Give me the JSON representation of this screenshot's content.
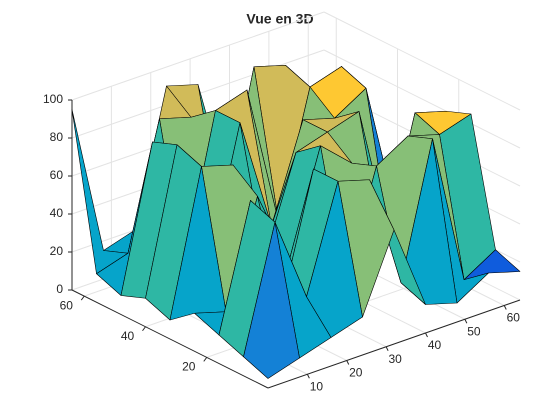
{
  "chart_data": {
    "type": "surface",
    "title": "Vue en 3D",
    "x": [
      0,
      8,
      16,
      24,
      32,
      40,
      48,
      56,
      64
    ],
    "y": [
      0,
      8,
      16,
      24,
      32,
      40,
      48,
      56,
      64
    ],
    "z": [
      [
        5,
        10,
        15,
        20,
        60,
        15,
        10,
        20,
        15
      ],
      [
        10,
        75,
        30,
        85,
        80,
        20,
        90,
        10,
        20
      ],
      [
        15,
        80,
        20,
        85,
        20,
        75,
        85,
        80,
        85
      ],
      [
        20,
        15,
        70,
        30,
        85,
        70,
        20,
        85,
        80
      ],
      [
        10,
        85,
        80,
        25,
        75,
        80,
        85,
        10,
        15
      ],
      [
        15,
        90,
        20,
        90,
        30,
        80,
        75,
        85,
        10
      ],
      [
        10,
        85,
        15,
        90,
        95,
        20,
        85,
        90,
        15
      ],
      [
        15,
        20,
        85,
        80,
        20,
        95,
        90,
        20,
        10
      ],
      [
        95,
        15,
        20,
        90,
        85,
        20,
        80,
        15,
        10
      ]
    ],
    "xlim": [
      0,
      64
    ],
    "ylim": [
      0,
      64
    ],
    "zlim": [
      0,
      100
    ],
    "xticks": [
      10,
      20,
      30,
      40,
      50,
      60
    ],
    "yticks": [
      20,
      40,
      60
    ],
    "zticks": [
      0,
      20,
      40,
      60,
      80,
      100
    ],
    "grid": true,
    "colormap": [
      "#352a87",
      "#0f5cdd",
      "#1481d6",
      "#06a4ca",
      "#2eb7a4",
      "#87bf77",
      "#d1bb59",
      "#fec832",
      "#f9fb0e"
    ]
  }
}
